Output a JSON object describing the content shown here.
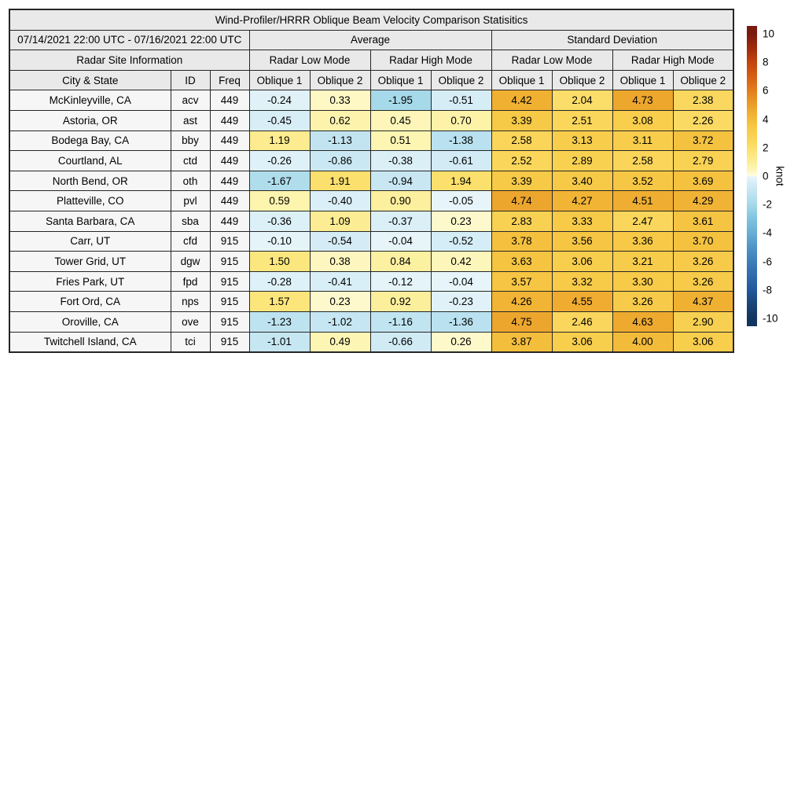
{
  "labels": {
    "site_info": "Radar Site Information",
    "city_state": "City & State",
    "id": "ID",
    "freq": "Freq",
    "oblique1": "Oblique 1",
    "oblique2": "Oblique 2"
  },
  "colorbar": {
    "label": "knot",
    "ticks": [
      10,
      8,
      6,
      4,
      2,
      0,
      -2,
      -4,
      -6,
      -8,
      -10
    ],
    "vmin": -10,
    "vmax": 10
  },
  "colors": {
    "header_bg": "#e9e9e9",
    "site_cell_bg": "#f6f6f6",
    "border": "#262626",
    "colormap_positive": [
      [
        0.0,
        "#fffde4"
      ],
      [
        0.05,
        "#fdf5b3"
      ],
      [
        0.1,
        "#fcee98"
      ],
      [
        0.15,
        "#fce77f"
      ],
      [
        0.2,
        "#fbdf6a"
      ],
      [
        0.25,
        "#fad65b"
      ],
      [
        0.3,
        "#f8cf4e"
      ],
      [
        0.35,
        "#f6c744"
      ],
      [
        0.4,
        "#f3bb3a"
      ],
      [
        0.45,
        "#efae31"
      ],
      [
        0.5,
        "#ea9e28"
      ],
      [
        0.6,
        "#e27f1c"
      ],
      [
        0.7,
        "#d55f12"
      ],
      [
        0.8,
        "#c2440e"
      ],
      [
        0.9,
        "#a02b0d"
      ],
      [
        1.0,
        "#7a190e"
      ]
    ],
    "colormap_negative": [
      [
        0.0,
        "#e9f6fa"
      ],
      [
        0.05,
        "#d6edf6"
      ],
      [
        0.1,
        "#c6e6f2"
      ],
      [
        0.15,
        "#b5dfee"
      ],
      [
        0.2,
        "#a4d8e9"
      ],
      [
        0.3,
        "#7fc3de"
      ],
      [
        0.4,
        "#68aed6"
      ],
      [
        0.5,
        "#4f94c6"
      ],
      [
        0.6,
        "#3d7fb9"
      ],
      [
        0.7,
        "#2e6cab"
      ],
      [
        0.8,
        "#22589b"
      ],
      [
        0.9,
        "#1a4578"
      ],
      [
        1.0,
        "#11355f"
      ]
    ]
  },
  "chart_data": {
    "type": "heatmap",
    "title": "Wind-Profiler/HRRR Oblique Beam Velocity Comparison Statisitics",
    "date_range": "07/14/2021 22:00 UTC - 07/16/2021 22:00 UTC",
    "column_groups": [
      {
        "label": "Average",
        "modes": [
          "Radar Low Mode",
          "Radar High Mode"
        ]
      },
      {
        "label": "Standard Deviation",
        "modes": [
          "Radar Low Mode",
          "Radar High Mode"
        ]
      }
    ],
    "value_column_pattern": [
      "Oblique 1",
      "Oblique 2"
    ],
    "value_column_order": [
      "avg_low_oblique1",
      "avg_low_oblique2",
      "avg_high_oblique1",
      "avg_high_oblique2",
      "sd_low_oblique1",
      "sd_low_oblique2",
      "sd_high_oblique1",
      "sd_high_oblique2"
    ],
    "colorbar_label": "knot",
    "colorbar_range": [
      -10,
      10
    ],
    "rows": [
      {
        "city": "McKinleyville, CA",
        "id": "acv",
        "freq": "449",
        "values": [
          -0.24,
          0.33,
          -1.95,
          -0.51,
          4.42,
          2.04,
          4.73,
          2.38
        ]
      },
      {
        "city": "Astoria, OR",
        "id": "ast",
        "freq": "449",
        "values": [
          -0.45,
          0.62,
          0.45,
          0.7,
          3.39,
          2.51,
          3.08,
          2.26
        ]
      },
      {
        "city": "Bodega Bay, CA",
        "id": "bby",
        "freq": "449",
        "values": [
          1.19,
          -1.13,
          0.51,
          -1.38,
          2.58,
          3.13,
          3.11,
          3.72
        ]
      },
      {
        "city": "Courtland, AL",
        "id": "ctd",
        "freq": "449",
        "values": [
          -0.26,
          -0.86,
          -0.38,
          -0.61,
          2.52,
          2.89,
          2.58,
          2.79
        ]
      },
      {
        "city": "North Bend, OR",
        "id": "oth",
        "freq": "449",
        "values": [
          -1.67,
          1.91,
          -0.94,
          1.94,
          3.39,
          3.4,
          3.52,
          3.69
        ]
      },
      {
        "city": "Platteville, CO",
        "id": "pvl",
        "freq": "449",
        "values": [
          0.59,
          -0.4,
          0.9,
          -0.05,
          4.74,
          4.27,
          4.51,
          4.29
        ]
      },
      {
        "city": "Santa Barbara, CA",
        "id": "sba",
        "freq": "449",
        "values": [
          -0.36,
          1.09,
          -0.37,
          0.23,
          2.83,
          3.33,
          2.47,
          3.61
        ]
      },
      {
        "city": "Carr, UT",
        "id": "cfd",
        "freq": "915",
        "values": [
          -0.1,
          -0.54,
          -0.04,
          -0.52,
          3.78,
          3.56,
          3.36,
          3.7
        ]
      },
      {
        "city": "Tower Grid, UT",
        "id": "dgw",
        "freq": "915",
        "values": [
          1.5,
          0.38,
          0.84,
          0.42,
          3.63,
          3.06,
          3.21,
          3.26
        ]
      },
      {
        "city": "Fries Park, UT",
        "id": "fpd",
        "freq": "915",
        "values": [
          -0.28,
          -0.41,
          -0.12,
          -0.04,
          3.57,
          3.32,
          3.3,
          3.26
        ]
      },
      {
        "city": "Fort Ord, CA",
        "id": "nps",
        "freq": "915",
        "values": [
          1.57,
          0.23,
          0.92,
          -0.23,
          4.26,
          4.55,
          3.26,
          4.37
        ]
      },
      {
        "city": "Oroville, CA",
        "id": "ove",
        "freq": "915",
        "values": [
          -1.23,
          -1.02,
          -1.16,
          -1.36,
          4.75,
          2.46,
          4.63,
          2.9
        ]
      },
      {
        "city": "Twitchell Island, CA",
        "id": "tci",
        "freq": "915",
        "values": [
          -1.01,
          0.49,
          -0.66,
          0.26,
          3.87,
          3.06,
          4.0,
          3.06
        ]
      }
    ]
  }
}
